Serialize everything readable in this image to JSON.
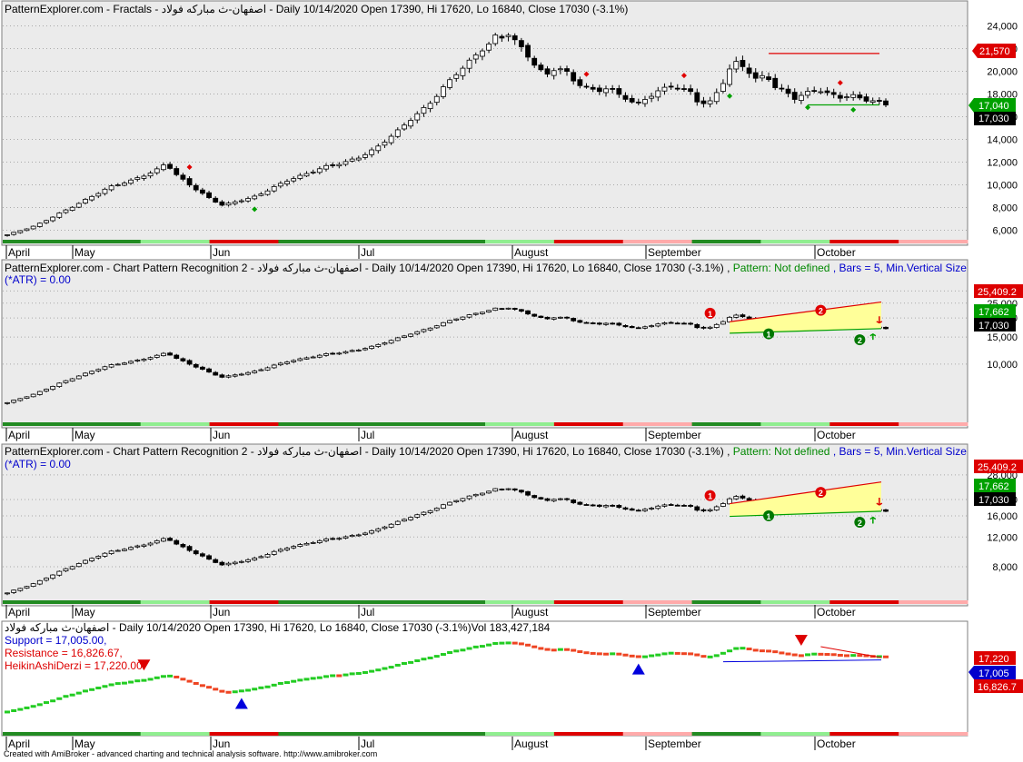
{
  "colors": {
    "bg_panel": "#ebebeb",
    "bg_white": "#ffffff",
    "grid": "#a9a9a9",
    "up_candle": "#ffffff",
    "down_candle": "#000000",
    "fractal_up": "#e00000",
    "fractal_down": "#00a000",
    "resistance_line": "#e00000",
    "support_line": "#00a000",
    "channel_fill": "#ffff99",
    "ha_up": "#22cc22",
    "ha_down": "#ee4422",
    "blue_line": "#0000dd",
    "label_red": "#dd0000",
    "label_green": "#008800",
    "label_black": "#000000",
    "label_blue": "#0000cc"
  },
  "months": [
    "April",
    "May",
    "Jun",
    "Jul",
    "August",
    "September",
    "October"
  ],
  "panel1": {
    "title_a": "PatternExplorer.com - Fractals - اصفهان-ث مباركه فولاد - Daily 10/14/2020 Open 17390, Hi 17620, Lo 16840, Close 17030 (-3.1%)",
    "labels": {
      "resistance": "21,570",
      "support": "17,040",
      "close": "17,030"
    }
  },
  "panel2": {
    "title_a": "PatternExplorer.com - Chart Pattern Recognition 2 - اصفهان-ث مباركه فولاد - Daily 10/14/2020 Open 17390, Hi 17620, Lo 16840, Close 17030 (-3.1%) ,",
    "title_b": "Pattern: Not defined",
    "title_c": ", Bars = 5, Min.Vertical Size",
    "title_d": "(*ATR) = 0.00",
    "labels": {
      "upper": "25,409.2",
      "mid": "17,662",
      "close": "17,030"
    }
  },
  "panel3": {
    "title_a": "PatternExplorer.com - Chart Pattern Recognition 2 - اصفهان-ث مباركه فولاد - Daily 10/14/2020 Open 17390, Hi 17620, Lo 16840, Close 17030 (-3.1%) ,",
    "title_b": "Pattern: Not defined",
    "title_c": ", Bars = 5, Min.Vertical Size",
    "title_d": "(*ATR) = 0.00",
    "labels": {
      "upper": "25,409.2",
      "mid": "17,662",
      "close": "17,030"
    }
  },
  "panel4": {
    "title_a": "اصفهان-ث مباركه فولاد - Daily 10/14/2020 Open 17390, Hi 17620, Lo 16840, Close 17030 (-3.1%)Vol 183,427,184",
    "support_text": "Support = 17,005.00,",
    "resistance_text": "Resistance = 16,826.67,",
    "ha_text": "HeikinAshiDerzi = 17,220.00",
    "labels": {
      "top": "17,220",
      "mid": "17,005",
      "bottom": "16,826.7"
    }
  },
  "footer": "Created with AmiBroker - advanced charting and technical analysis software. http://www.amibroker.com",
  "chart_data": [
    {
      "type": "candlestick",
      "title": "PatternExplorer.com - Fractals - اصفهان-ث مباركه فولاد - Daily 10/14/2020 Open 17390, Hi 17620, Lo 16840, Close 17030 (-3.1%)",
      "y_ticks": [
        6000,
        8000,
        10000,
        12000,
        14000,
        16000,
        18000,
        20000,
        22000,
        24000
      ],
      "ylim": [
        5000,
        25000
      ],
      "x_labels": [
        "April",
        "May",
        "Jun",
        "Jul",
        "August",
        "September",
        "October"
      ],
      "grid": true,
      "last": {
        "open": 17390,
        "high": 17620,
        "low": 16840,
        "close": 17030
      },
      "markers": {
        "resistance": 21570,
        "support": 17040,
        "close": 17030
      }
    },
    {
      "type": "candlestick",
      "title": "PatternExplorer.com - Chart Pattern Recognition 2 - اصفهان-ث مباركه فولاد - Daily 10/14/2020 Open 17390, Hi 17620, Lo 16840, Close 17030 (-3.1%)",
      "y_ticks": [
        10000,
        15000,
        20000,
        25000,
        30000
      ],
      "ylim": [
        4000,
        31000
      ],
      "log_scale": true,
      "x_labels": [
        "April",
        "May",
        "Jun",
        "Jul",
        "August",
        "September",
        "October"
      ],
      "grid": true,
      "markers": {
        "upper": 25409.2,
        "mid": 17662,
        "close": 17030
      }
    },
    {
      "type": "candlestick",
      "title": "PatternExplorer.com - Chart Pattern Recognition 2 - اصفهان-ث مباركه فولاد - Daily 10/14/2020 Open 17390, Hi 17620, Lo 16840, Close 17030 (-3.1%)",
      "y_ticks": [
        8000,
        12000,
        16000,
        20000,
        28000
      ],
      "ylim": [
        5000,
        29000
      ],
      "log_scale": true,
      "x_labels": [
        "April",
        "May",
        "Jun",
        "Jul",
        "August",
        "September",
        "October"
      ],
      "grid": true,
      "markers": {
        "upper": 25409.2,
        "mid": 17662,
        "close": 17030
      }
    },
    {
      "type": "heikin-ashi",
      "title": "اصفهان-ث مباركه فولاد - Daily 10/14/2020 Open 17390, Hi 17620, Lo 16840, Close 17030 (-3.1%)Vol 183,427,184",
      "x_labels": [
        "April",
        "May",
        "Jun",
        "Jul",
        "August",
        "September",
        "October"
      ],
      "grid": false,
      "support": 17005.0,
      "resistance": 16826.67,
      "heikin_ashi_derzi": 17220.0,
      "markers": {
        "top": 17220,
        "mid": 17005,
        "bottom": 16826.7
      }
    }
  ]
}
